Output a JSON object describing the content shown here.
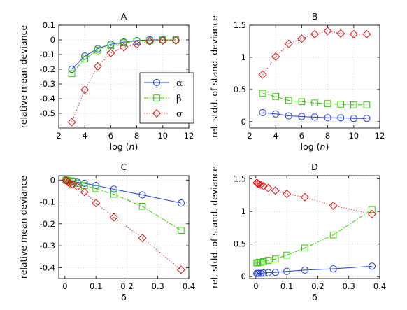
{
  "colors": {
    "alpha": "#1f3fd6",
    "beta": "#33cc00",
    "sigma": "#dd1111"
  },
  "legend": [
    {
      "label": "α",
      "series": "alpha",
      "marker": "circle",
      "dash": "solid"
    },
    {
      "label": "β",
      "series": "beta",
      "marker": "square",
      "dash": "dashdot"
    },
    {
      "label": "σ",
      "series": "sigma",
      "marker": "diamond",
      "dash": "dotted"
    }
  ],
  "chart_data": [
    {
      "id": "A",
      "type": "line",
      "title": "A",
      "xlabel": "log (n)",
      "ylabel": "relative mean deviance",
      "xlim": [
        2,
        12
      ],
      "ylim": [
        -0.6,
        0.1
      ],
      "xticks": [
        "2",
        "4",
        "6",
        "8",
        "10",
        "12"
      ],
      "xtick_values": [
        2,
        4,
        6,
        8,
        10,
        12
      ],
      "yticks": [
        "-0.5",
        "-0.4",
        "-0.3",
        "-0.2",
        "-0.1",
        "0",
        "0.1"
      ],
      "ytick_values": [
        -0.5,
        -0.4,
        -0.3,
        -0.2,
        -0.1,
        0,
        0.1
      ],
      "grid": true,
      "legend_position": "lower-right",
      "x": [
        3,
        4,
        5,
        6,
        7,
        8,
        9,
        10,
        11
      ],
      "series": [
        {
          "name": "α",
          "key": "alpha",
          "values": [
            -0.2,
            -0.11,
            -0.06,
            -0.03,
            -0.015,
            -0.005,
            0,
            0,
            0
          ]
        },
        {
          "name": "β",
          "key": "beta",
          "values": [
            -0.23,
            -0.13,
            -0.07,
            -0.04,
            -0.02,
            -0.01,
            -0.005,
            0,
            0
          ]
        },
        {
          "name": "σ",
          "key": "sigma",
          "values": [
            -0.56,
            -0.34,
            -0.18,
            -0.09,
            -0.05,
            -0.03,
            -0.01,
            -0.005,
            -0.005
          ]
        }
      ]
    },
    {
      "id": "B",
      "type": "line",
      "title": "B",
      "xlabel": "log (n)",
      "ylabel": "rel. stdd. of stand. deviance",
      "xlim": [
        2,
        12
      ],
      "ylim": [
        -0.1,
        1.5
      ],
      "xticks": [
        "2",
        "4",
        "6",
        "8",
        "10",
        "12"
      ],
      "xtick_values": [
        2,
        4,
        6,
        8,
        10,
        12
      ],
      "yticks": [
        "0",
        "0.5",
        "1",
        "1.5"
      ],
      "ytick_values": [
        0,
        0.5,
        1,
        1.5
      ],
      "grid": true,
      "x": [
        3,
        4,
        5,
        6,
        7,
        8,
        9,
        10,
        11
      ],
      "series": [
        {
          "name": "α",
          "key": "alpha",
          "values": [
            0.14,
            0.12,
            0.09,
            0.08,
            0.07,
            0.06,
            0.06,
            0.05,
            0.05
          ]
        },
        {
          "name": "β",
          "key": "beta",
          "values": [
            0.44,
            0.39,
            0.33,
            0.31,
            0.29,
            0.28,
            0.27,
            0.26,
            0.26
          ]
        },
        {
          "name": "σ",
          "key": "sigma",
          "values": [
            0.73,
            1.01,
            1.21,
            1.29,
            1.36,
            1.41,
            1.37,
            1.36,
            1.36
          ]
        }
      ]
    },
    {
      "id": "C",
      "type": "line",
      "title": "C",
      "xlabel": "δ",
      "ylabel": "relative mean deviance",
      "xlim": [
        -0.02,
        0.4
      ],
      "ylim": [
        -0.45,
        0.02
      ],
      "xticks": [
        "0",
        "0.1",
        "0.2",
        "0.3",
        "0.4"
      ],
      "xtick_values": [
        0,
        0.1,
        0.2,
        0.3,
        0.4
      ],
      "yticks": [
        "-0.4",
        "-0.3",
        "-0.2",
        "-0.1",
        "0"
      ],
      "ytick_values": [
        -0.4,
        -0.3,
        -0.2,
        -0.1,
        0
      ],
      "grid": true,
      "x": [
        0.003,
        0.006,
        0.01,
        0.016,
        0.025,
        0.04,
        0.063,
        0.1,
        0.158,
        0.25,
        0.375
      ],
      "series": [
        {
          "name": "α",
          "key": "alpha",
          "values": [
            0,
            0,
            -0.001,
            -0.003,
            -0.005,
            -0.01,
            -0.015,
            -0.025,
            -0.042,
            -0.068,
            -0.105
          ]
        },
        {
          "name": "β",
          "key": "beta",
          "values": [
            0,
            -0.001,
            -0.003,
            -0.005,
            -0.008,
            -0.015,
            -0.025,
            -0.04,
            -0.065,
            -0.12,
            -0.23
          ]
        },
        {
          "name": "σ",
          "key": "sigma",
          "values": [
            -0.002,
            -0.005,
            -0.01,
            -0.015,
            -0.02,
            -0.03,
            -0.055,
            -0.105,
            -0.17,
            -0.265,
            -0.41
          ]
        }
      ]
    },
    {
      "id": "D",
      "type": "line",
      "title": "D",
      "xlabel": "δ",
      "ylabel": "rel. stdd. of stand. deviance",
      "xlim": [
        -0.02,
        0.4
      ],
      "ylim": [
        -0.03,
        1.55
      ],
      "xticks": [
        "0",
        "0.1",
        "0.2",
        "0.3",
        "0.4"
      ],
      "xtick_values": [
        0,
        0.1,
        0.2,
        0.3,
        0.4
      ],
      "yticks": [
        "0",
        "0.5",
        "1",
        "1.5"
      ],
      "ytick_values": [
        0,
        0.5,
        1,
        1.5
      ],
      "grid": true,
      "x": [
        0.003,
        0.006,
        0.01,
        0.016,
        0.025,
        0.04,
        0.063,
        0.1,
        0.158,
        0.25,
        0.375
      ],
      "series": [
        {
          "name": "α",
          "key": "alpha",
          "values": [
            0.05,
            0.05,
            0.05,
            0.05,
            0.055,
            0.06,
            0.065,
            0.08,
            0.1,
            0.12,
            0.16
          ]
        },
        {
          "name": "β",
          "key": "beta",
          "values": [
            0.21,
            0.21,
            0.22,
            0.22,
            0.23,
            0.25,
            0.27,
            0.33,
            0.44,
            0.64,
            1.03
          ]
        },
        {
          "name": "σ",
          "key": "sigma",
          "values": [
            1.44,
            1.43,
            1.42,
            1.41,
            1.39,
            1.36,
            1.32,
            1.27,
            1.22,
            1.09,
            0.96
          ]
        }
      ]
    }
  ]
}
